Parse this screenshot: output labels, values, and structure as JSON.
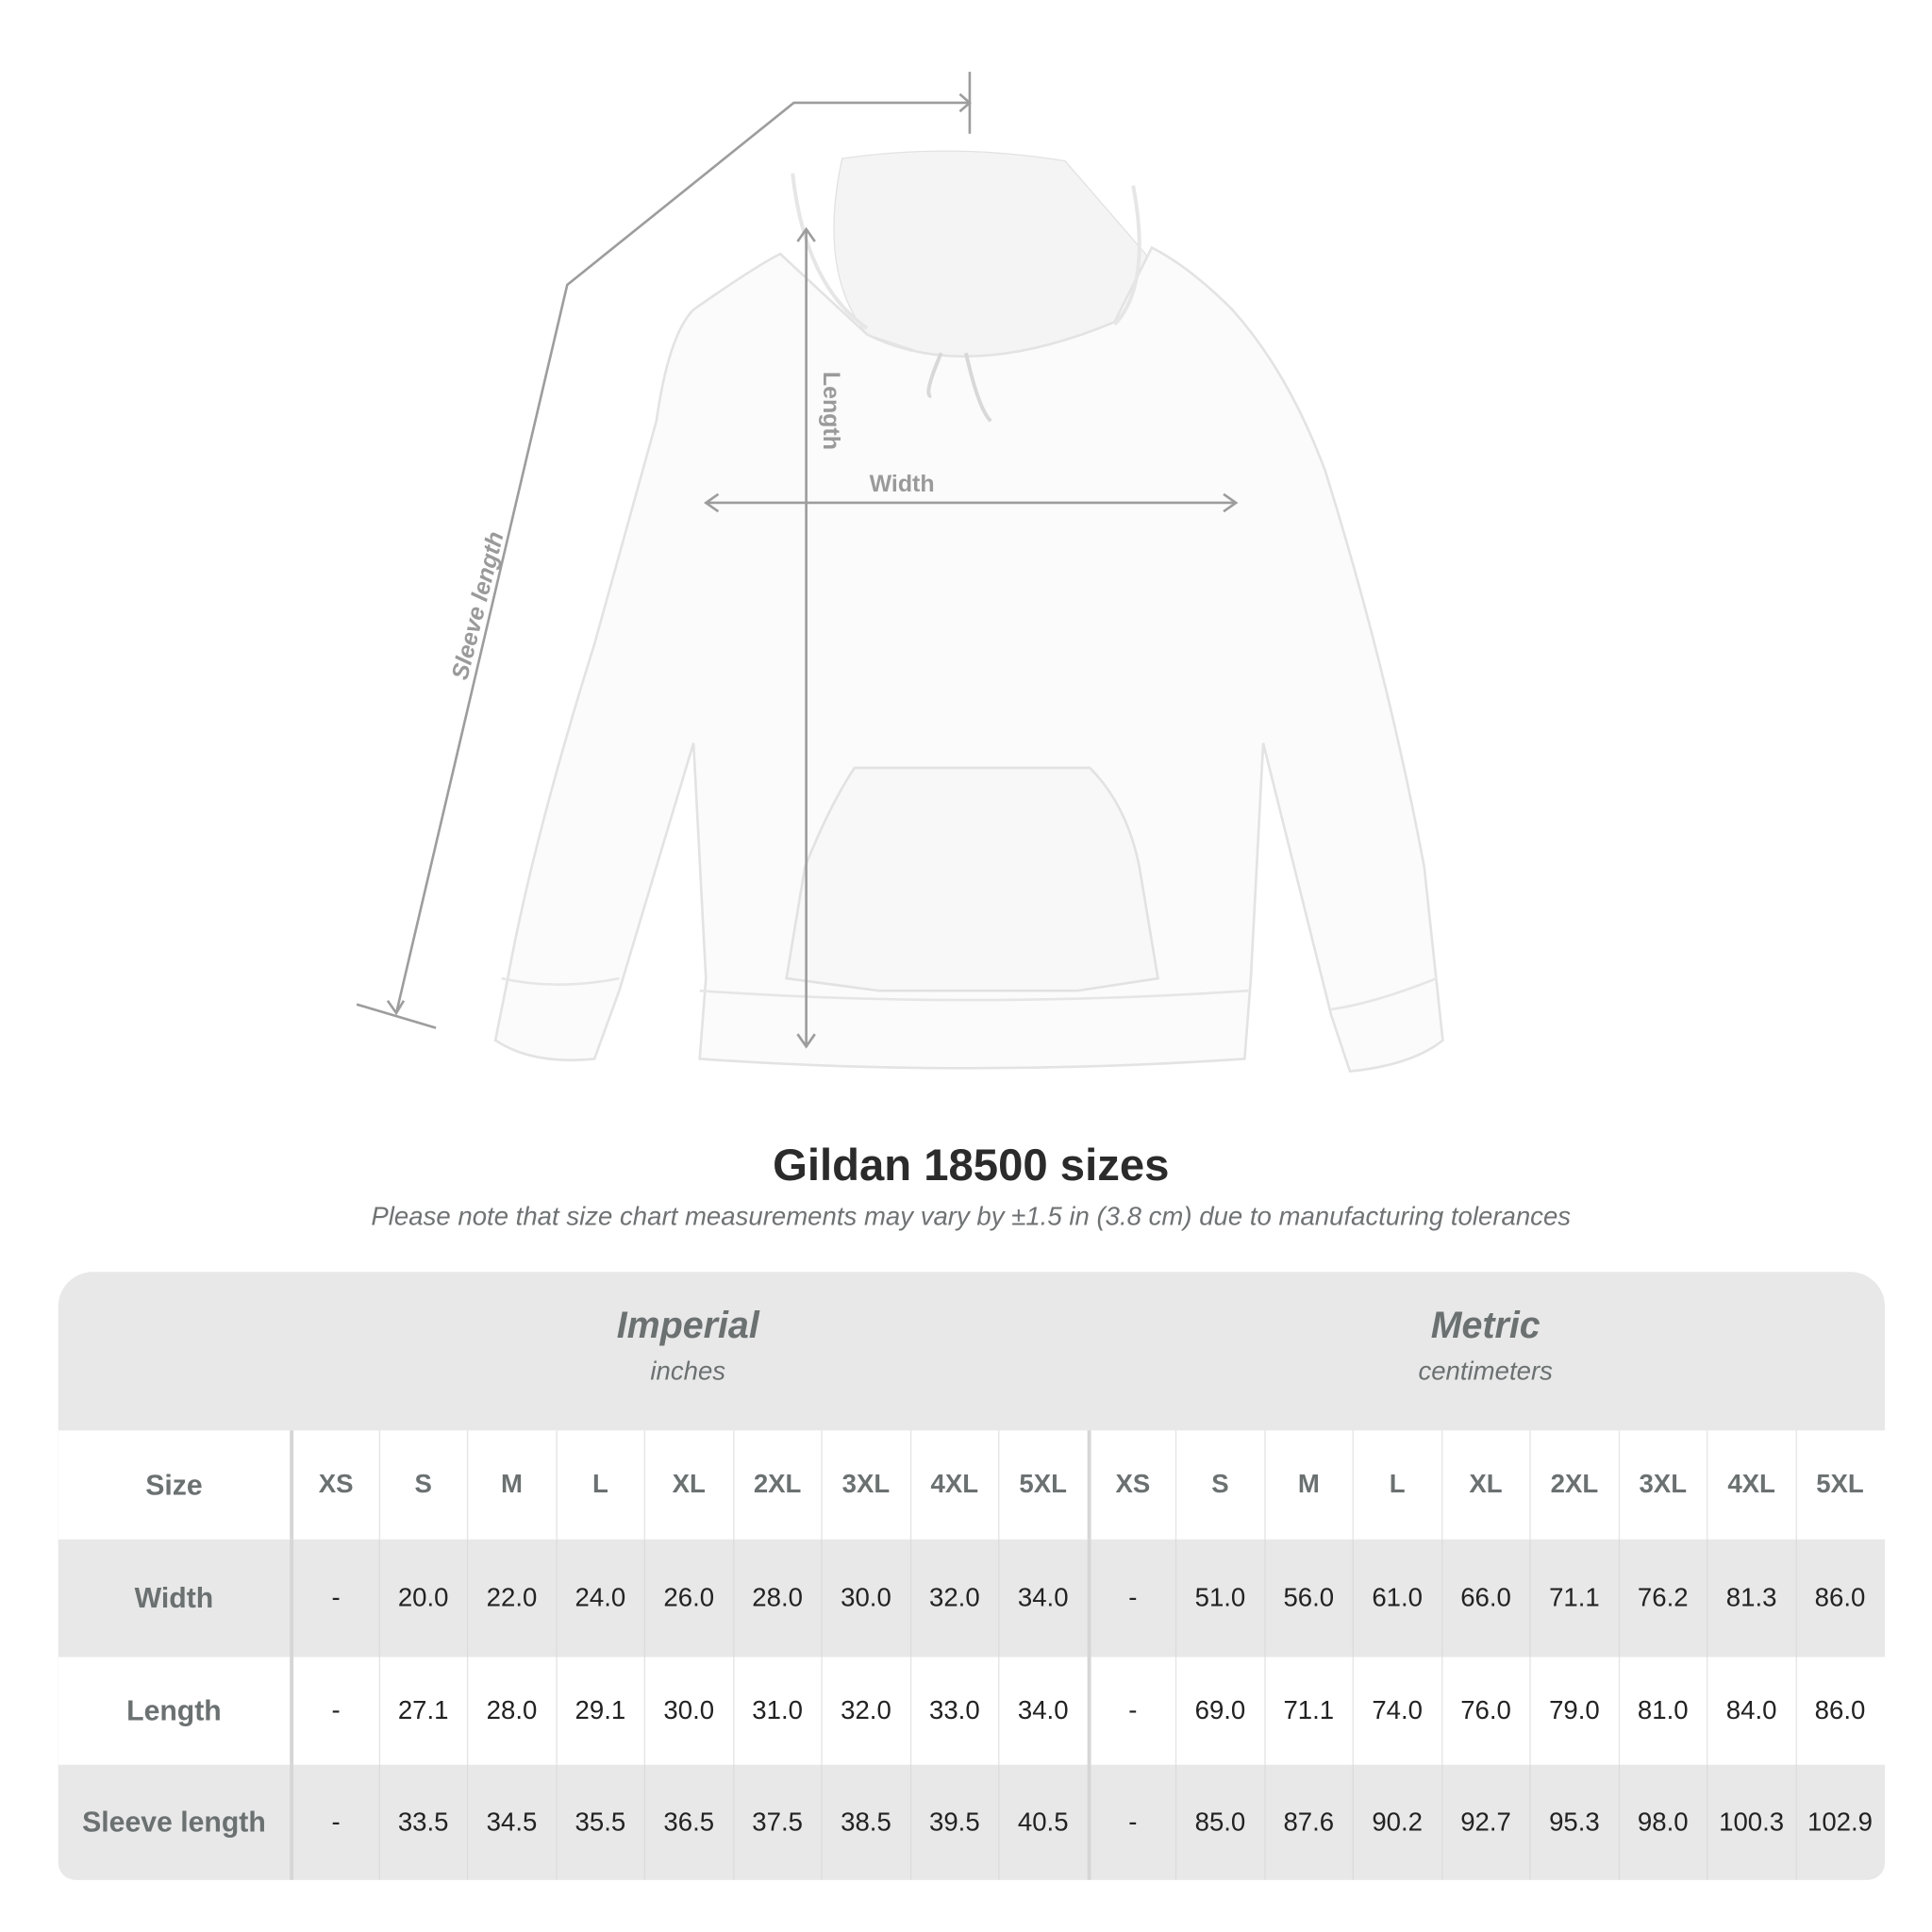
{
  "diagram": {
    "labels": {
      "length": "Length",
      "width": "Width",
      "sleeve": "Sleeve length"
    }
  },
  "title": "Gildan 18500 sizes",
  "subtitle": "Please note that size chart measurements may vary by ±1.5 in (3.8 cm) due to manufacturing tolerances",
  "table": {
    "imperial": {
      "title": "Imperial",
      "unit": "inches"
    },
    "metric": {
      "title": "Metric",
      "unit": "centimeters"
    },
    "size_label": "Size",
    "sizes": [
      "XS",
      "S",
      "M",
      "L",
      "XL",
      "2XL",
      "3XL",
      "4XL",
      "5XL"
    ],
    "rows": [
      {
        "label": "Width",
        "imperial": [
          "-",
          "20.0",
          "22.0",
          "24.0",
          "26.0",
          "28.0",
          "30.0",
          "32.0",
          "34.0"
        ],
        "metric": [
          "-",
          "51.0",
          "56.0",
          "61.0",
          "66.0",
          "71.1",
          "76.2",
          "81.3",
          "86.0"
        ]
      },
      {
        "label": "Length",
        "imperial": [
          "-",
          "27.1",
          "28.0",
          "29.1",
          "30.0",
          "31.0",
          "32.0",
          "33.0",
          "34.0"
        ],
        "metric": [
          "-",
          "69.0",
          "71.1",
          "74.0",
          "76.0",
          "79.0",
          "81.0",
          "84.0",
          "86.0"
        ]
      },
      {
        "label": "Sleeve length",
        "imperial": [
          "-",
          "33.5",
          "34.5",
          "35.5",
          "36.5",
          "37.5",
          "38.5",
          "39.5",
          "40.5"
        ],
        "metric": [
          "-",
          "85.0",
          "87.6",
          "90.2",
          "92.7",
          "95.3",
          "98.0",
          "100.3",
          "102.9"
        ]
      }
    ]
  }
}
